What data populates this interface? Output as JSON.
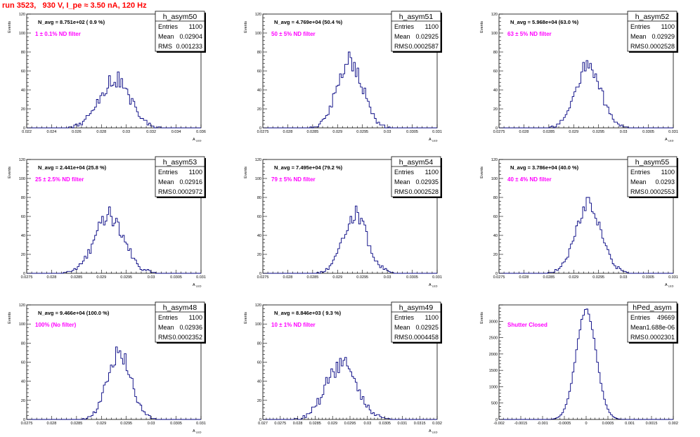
{
  "page_title": "run 3523,   930 V, I_pe ≈ 3.50 nA, 120 Hz",
  "colors": {
    "histogram": "#000080",
    "title": "#ff0000",
    "filter_label": "#ff00ff"
  },
  "chart_data": [
    {
      "type": "histogram",
      "name": "h_asym50",
      "navg": "N_avg = 8.751e+02 ( 0.9 %)",
      "filter": "1 ± 0.1% ND filter",
      "stats": {
        "entries": "1100",
        "mean": "0.02904",
        "rms": "0.001233"
      },
      "ylabel": "Events",
      "xlabel": "A_LED",
      "xlim": [
        0.022,
        0.036
      ],
      "ylim": [
        0,
        120
      ],
      "xticks": [
        "0.022",
        "0.024",
        "0.026",
        "0.028",
        "0.03",
        "0.032",
        "0.034",
        "0.036"
      ],
      "yticks": [
        "0",
        "20",
        "40",
        "60",
        "80",
        "100",
        "120"
      ],
      "shape": {
        "mean": 0.02904,
        "rms": 0.001233,
        "peak": 52,
        "bins": 100,
        "seed": 11,
        "noise": 0.22
      }
    },
    {
      "type": "histogram",
      "name": "h_asym51",
      "navg": "N_avg = 4.769e+04 (50.4 %)",
      "filter": "50 ± 5% ND filter",
      "stats": {
        "entries": "1100",
        "mean": "0.02925",
        "rms": "0.0002587"
      },
      "ylabel": "Events",
      "xlabel": "A_LED",
      "xlim": [
        0.0275,
        0.031
      ],
      "ylim": [
        0,
        120
      ],
      "xticks": [
        "0.0275",
        "0.028",
        "0.0285",
        "0.029",
        "0.0295",
        "0.03",
        "0.0305",
        "0.031"
      ],
      "yticks": [
        "0",
        "20",
        "40",
        "60",
        "80",
        "100",
        "120"
      ],
      "shape": {
        "mean": 0.02925,
        "rms": 0.0002587,
        "peak": 70,
        "bins": 100,
        "seed": 21,
        "noise": 0.15
      }
    },
    {
      "type": "histogram",
      "name": "h_asym52",
      "navg": "N_avg = 5.968e+04 (63.0 %)",
      "filter": "63 ± 5% ND filter",
      "stats": {
        "entries": "1100",
        "mean": "0.02929",
        "rms": "0.0002528"
      },
      "ylabel": "Events",
      "xlabel": "A_LED",
      "xlim": [
        0.0275,
        0.031
      ],
      "ylim": [
        0,
        120
      ],
      "xticks": [
        "0.0275",
        "0.028",
        "0.0285",
        "0.029",
        "0.0295",
        "0.03",
        "0.0305",
        "0.031"
      ],
      "yticks": [
        "0",
        "20",
        "40",
        "60",
        "80",
        "100",
        "120"
      ],
      "shape": {
        "mean": 0.02929,
        "rms": 0.0002528,
        "peak": 66,
        "bins": 100,
        "seed": 31,
        "noise": 0.15
      }
    },
    {
      "type": "histogram",
      "name": "h_asym53",
      "navg": "N_avg = 2.441e+04 (25.8 %)",
      "filter": "25 ± 2.5% ND filter",
      "stats": {
        "entries": "1100",
        "mean": "0.02916",
        "rms": "0.0002972"
      },
      "ylabel": "Events",
      "xlabel": "A_LED",
      "xlim": [
        0.0275,
        0.031
      ],
      "ylim": [
        0,
        120
      ],
      "xticks": [
        "0.0275",
        "0.028",
        "0.0285",
        "0.029",
        "0.0295",
        "0.03",
        "0.0305",
        "0.031"
      ],
      "yticks": [
        "0",
        "20",
        "40",
        "60",
        "80",
        "100",
        "120"
      ],
      "shape": {
        "mean": 0.02916,
        "rms": 0.0002972,
        "peak": 60,
        "bins": 100,
        "seed": 41,
        "noise": 0.15
      }
    },
    {
      "type": "histogram",
      "name": "h_asym54",
      "navg": "N_avg = 7.495e+04 (79.2 %)",
      "filter": "79 ± 5% ND filter",
      "stats": {
        "entries": "1100",
        "mean": "0.02935",
        "rms": "0.0002528"
      },
      "ylabel": "Events",
      "xlabel": "A_LED",
      "xlim": [
        0.0275,
        0.031
      ],
      "ylim": [
        0,
        120
      ],
      "xticks": [
        "0.0275",
        "0.028",
        "0.0285",
        "0.029",
        "0.0295",
        "0.03",
        "0.0305",
        "0.031"
      ],
      "yticks": [
        "0",
        "20",
        "40",
        "60",
        "80",
        "100",
        "120"
      ],
      "shape": {
        "mean": 0.02935,
        "rms": 0.0002528,
        "peak": 61,
        "bins": 100,
        "seed": 51,
        "noise": 0.15
      }
    },
    {
      "type": "histogram",
      "name": "h_asym55",
      "navg": "N_avg = 3.786e+04 (40.0 %)",
      "filter": "40 ± 4% ND filter",
      "stats": {
        "entries": "1100",
        "mean": "0.0293",
        "rms": "0.0002553"
      },
      "ylabel": "Events",
      "xlabel": "A_LED",
      "xlim": [
        0.0275,
        0.031
      ],
      "ylim": [
        0,
        120
      ],
      "xticks": [
        "0.0275",
        "0.028",
        "0.0285",
        "0.029",
        "0.0295",
        "0.03",
        "0.0305",
        "0.031"
      ],
      "yticks": [
        "0",
        "20",
        "40",
        "60",
        "80",
        "100",
        "120"
      ],
      "shape": {
        "mean": 0.0293,
        "rms": 0.0002553,
        "peak": 72,
        "bins": 100,
        "seed": 61,
        "noise": 0.15
      }
    },
    {
      "type": "histogram",
      "name": "h_asym48",
      "navg": "N_avg = 9.466e+04 (100.0 %)",
      "filter": "100% (No filter)",
      "stats": {
        "entries": "1100",
        "mean": "0.02936",
        "rms": "0.0002352"
      },
      "ylabel": "Events",
      "xlabel": "A_LED",
      "xlim": [
        0.0275,
        0.031
      ],
      "ylim": [
        0,
        120
      ],
      "xticks": [
        "0.0275",
        "0.028",
        "0.0285",
        "0.029",
        "0.0295",
        "0.03",
        "0.0305",
        "0.031"
      ],
      "yticks": [
        "0",
        "20",
        "40",
        "60",
        "80",
        "100",
        "120"
      ],
      "shape": {
        "mean": 0.02936,
        "rms": 0.0002352,
        "peak": 72,
        "bins": 100,
        "seed": 71,
        "noise": 0.15
      }
    },
    {
      "type": "histogram",
      "name": "h_asym49",
      "navg": "N_avg = 8.846e+03 ( 9.3 %)",
      "filter": "10 ± 1% ND filter",
      "stats": {
        "entries": "1100",
        "mean": "0.02925",
        "rms": "0.0004458"
      },
      "ylabel": "Events",
      "xlabel": "A_LED",
      "xlim": [
        0.027,
        0.032
      ],
      "ylim": [
        0,
        120
      ],
      "xticks": [
        "0.027",
        "0.0275",
        "0.028",
        "0.0285",
        "0.029",
        "0.0295",
        "0.03",
        "0.0305",
        "0.031",
        "0.0315",
        "0.032"
      ],
      "yticks": [
        "0",
        "20",
        "40",
        "60",
        "80",
        "100",
        "120"
      ],
      "shape": {
        "mean": 0.02925,
        "rms": 0.0004458,
        "peak": 57,
        "bins": 100,
        "seed": 81,
        "noise": 0.18
      }
    },
    {
      "type": "histogram",
      "name": "hPed_asym",
      "navg": "",
      "filter": "Shutter Closed",
      "stats": {
        "entries": "49669",
        "mean": "1.688e-06",
        "rms": "0.0002301"
      },
      "ylabel": "Events",
      "xlabel": "",
      "xlim": [
        -0.002,
        0.002
      ],
      "ylim": [
        0,
        3500
      ],
      "xticks": [
        "-0.002",
        "-0.0015",
        "-0.001",
        "-0.0005",
        "0",
        "0.0005",
        "0.001",
        "0.0015",
        "0.002"
      ],
      "yticks": [
        "0",
        "500",
        "1000",
        "1500",
        "2000",
        "2500",
        "3000"
      ],
      "shape": {
        "mean": 0.0,
        "rms": 0.0002301,
        "peak": 3340,
        "bins": 100,
        "seed": 91,
        "noise": 0.02
      }
    }
  ]
}
